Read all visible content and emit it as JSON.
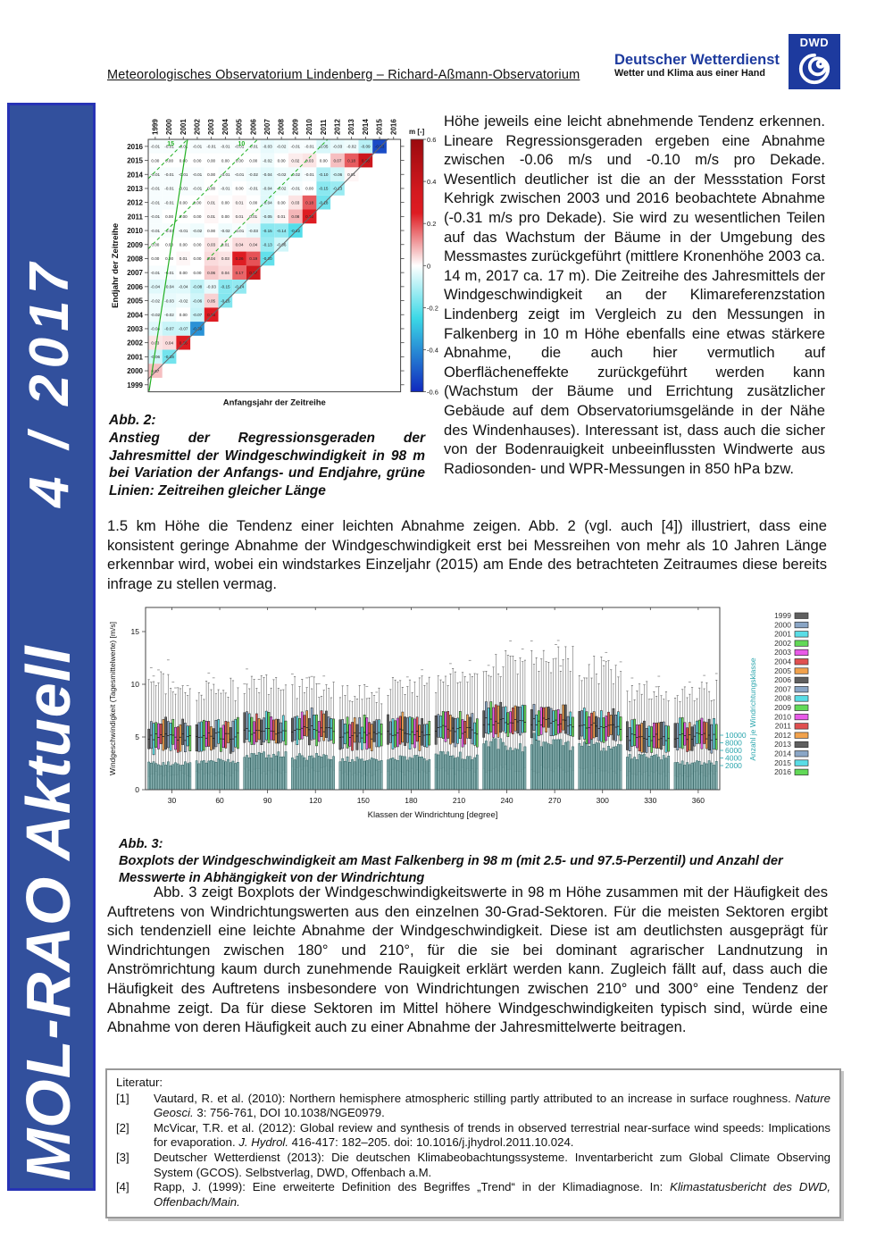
{
  "header": {
    "title": "Meteorologisches Observatorium Lindenberg – Richard-Aßmann-Observatorium",
    "brand_name": "Deutscher Wetterdienst",
    "brand_tagline": "Wetter und Klima aus einer Hand",
    "brand_logo_text": "DWD",
    "brand_color": "#1d3a9e"
  },
  "sidebar": {
    "issue": "4 / 2017",
    "title": "MOL-RAO Aktuell",
    "bg_color": "#32509d",
    "border_color": "#2733b5"
  },
  "body": {
    "col_right": "Höhe jeweils eine leicht abnehmende Tendenz erkennen. Lineare Regressionsgeraden ergeben eine Abnahme zwischen -0.06 m/s und -0.10 m/s pro Dekade. Wesentlich deutlicher ist die an der Messstation Forst Kehrigk zwischen 2003 und 2016 beobachtete Abnahme (-0.31 m/s pro Dekade). Sie wird zu wesentlichen Teilen auf das Wachstum der Bäume in der Umgebung des Messmastes zurückgeführt (mittlere Kronenhöhe 2003 ca. 14 m, 2017 ca. 17 m). Die Zeitreihe des Jahresmittels der Windgeschwindigkeit an der Klimareferenzstation Lindenberg zeigt im Vergleich zu den Messungen in Falkenberg in 10 m Höhe ebenfalls eine etwas stärkere Abnahme, die auch hier vermutlich auf Oberflächeneffekte zurückgeführt werden kann (Wachstum der Bäume und Errichtung zusätzlicher Gebäude auf dem Observatoriumsgelände in der Nähe des Windenhauses). Interessant ist, dass auch die sicher von der Bodenrauigkeit unbeeinflussten Windwerte aus Radiosonden- und WPR-Messungen in 850 hPa bzw.",
    "para_full": "1.5 km Höhe die Tendenz einer leichten Abnahme zeigen. Abb. 2 (vgl. auch [4]) illustriert, dass eine konsistent geringe Abnahme der Windgeschwindigkeit erst bei Messreihen von mehr als 10 Jahren Länge erkennbar wird, wobei ein windstarkes Einzeljahr (2015) am Ende des betrachteten Zeitraumes diese bereits infrage zu stellen vermag.",
    "para_3": "Abb. 3 zeigt Boxplots der Windgeschwindigkeitswerte in 98 m Höhe zusammen mit der Häufigkeit des Auftretens von Windrichtungswerten aus den einzelnen 30-Grad-Sektoren. Für die meisten Sektoren ergibt sich tendenziell eine leichte Abnahme der Windgeschwindigkeit. Diese ist am deutlichsten ausgeprägt für Windrichtungen zwischen 180° und 210°, für die sie bei dominant agrarischer Landnutzung in Anströmrichtung kaum durch zunehmende Rauigkeit erklärt werden kann. Zugleich fällt auf, dass auch die Häufigkeit des Auftretens insbesondere von Windrichtungen zwischen 210° und 300° eine Tendenz der Abnahme zeigt. Da für diese Sektoren im Mittel höhere Windgeschwindigkeiten typisch sind, würde eine Abnahme von deren Häufigkeit auch zu einer Abnahme der Jahresmittelwerte beitragen."
  },
  "fig2": {
    "caption_label": "Abb. 2:",
    "caption": "Anstieg der Regressionsgeraden der Jahresmittel der Windgeschwindigkeit in 98 m bei Variation der Anfangs- und Endjahre, grüne Linien: Zeitreihen gleicher Länge"
  },
  "fig3": {
    "caption_label": "Abb. 3:",
    "caption": "Boxplots der Windgeschwindigkeit am Mast Falkenberg in 98 m (mit 2.5- und 97.5-Perzentil) und Anzahl der Messwerte in Abhängigkeit von der Windrichtung"
  },
  "literature": {
    "title": "Literatur:",
    "refs": [
      {
        "num": "[1]",
        "parts": [
          {
            "t": "Vautard, R. et al. (2010): Northern hemisphere atmospheric stilling partly attributed to an increase in surface roughness. "
          },
          {
            "t": "Nature Geosci.",
            "i": true
          },
          {
            "t": " 3: 756-761, DOI 10.1038/NGE0979."
          }
        ]
      },
      {
        "num": "[2]",
        "parts": [
          {
            "t": "McVicar, T.R. et al. (2012): Global review and synthesis of trends in observed terrestrial near-surface wind speeds: Implications for evaporation. "
          },
          {
            "t": "J. Hydrol.",
            "i": true
          },
          {
            "t": " 416-417: 182–205. doi: 10.1016/j.jhydrol.2011.10.024."
          }
        ]
      },
      {
        "num": "[3]",
        "parts": [
          {
            "t": "Deutscher Wetterdienst (2013): Die deutschen Klimabeobachtungssysteme. Inventarbericht zum Global Climate Observing System (GCOS). Selbstverlag, DWD, Offenbach a.M."
          }
        ]
      },
      {
        "num": "[4]",
        "parts": [
          {
            "t": "Rapp, J. (1999): Eine erweiterte Definition des Begriffes „Trend“ in der Klimadiagnose. In: "
          },
          {
            "t": "Klimastatusbericht des DWD, Offenbach/Main.",
            "i": true
          }
        ]
      }
    ]
  },
  "chart_data": [
    {
      "type": "heatmap",
      "xlabel": "Anfangsjahr der Zeitreihe",
      "ylabel": "Endjahr der Zeitreihe",
      "colorbar_label": "m [-]",
      "colorbar_ticks": [
        0.6,
        0.4,
        0.2,
        0,
        -0.2,
        -0.4,
        -0.6
      ],
      "value_range": [
        -0.6,
        0.6
      ],
      "start_years": [
        1999,
        2000,
        2001,
        2002,
        2003,
        2004,
        2005,
        2006,
        2007,
        2008,
        2009,
        2010,
        2011,
        2012,
        2013,
        2014,
        2015,
        2016
      ],
      "rows": [
        {
          "end": 2016,
          "values": [
            -0.01,
            -0.01,
            -0.01,
            -0.01,
            -0.01,
            -0.01,
            -0.01,
            -0.01,
            -0.03,
            -0.02,
            -0.01,
            -0.01,
            -0.05,
            -0.03,
            -0.02,
            -0.09,
            -0.53
          ]
        },
        {
          "end": 2015,
          "values": [
            0.0,
            0.0,
            0.0,
            0.0,
            0.0,
            0.0,
            0.0,
            0.0,
            -0.02,
            0.0,
            0.02,
            0.03,
            0.0,
            0.07,
            0.18,
            0.38
          ]
        },
        {
          "end": 2014,
          "values": [
            -0.01,
            -0.01,
            -0.01,
            -0.01,
            0.0,
            -0.01,
            -0.01,
            -0.02,
            -0.04,
            -0.02,
            -0.02,
            -0.01,
            -0.1,
            -0.06,
            0.01
          ]
        },
        {
          "end": 2013,
          "values": [
            -0.01,
            -0.01,
            -0.01,
            -0.01,
            0.0,
            -0.01,
            0.0,
            -0.01,
            -0.04,
            -0.02,
            -0.01,
            0.0,
            -0.15,
            -0.13
          ]
        },
        {
          "end": 2012,
          "values": [
            -0.01,
            -0.01,
            0.0,
            0.0,
            0.01,
            0.0,
            0.01,
            0.0,
            -0.04,
            0.0,
            0.03,
            0.18,
            -0.18
          ]
        },
        {
          "end": 2011,
          "values": [
            -0.01,
            0.0,
            0.0,
            0.0,
            0.01,
            0.0,
            0.01,
            0.01,
            -0.05,
            0.01,
            0.08,
            0.3
          ]
        },
        {
          "end": 2010,
          "values": [
            -0.01,
            -0.01,
            -0.01,
            -0.02,
            0.0,
            -0.02,
            -0.01,
            -0.03,
            -0.15,
            -0.14,
            -0.22
          ]
        },
        {
          "end": 2009,
          "values": [
            0.0,
            0.0,
            0.0,
            0.0,
            0.03,
            0.01,
            0.04,
            0.04,
            -0.13,
            -0.06
          ]
        },
        {
          "end": 2008,
          "values": [
            0.0,
            0.0,
            0.01,
            0.0,
            0.04,
            0.03,
            0.26,
            0.19,
            -0.2
          ]
        },
        {
          "end": 2007,
          "values": [
            -0.01,
            -0.01,
            0.0,
            0.0,
            0.06,
            0.04,
            0.17,
            0.37
          ]
        },
        {
          "end": 2006,
          "values": [
            -0.04,
            -0.04,
            -0.04,
            -0.08,
            -0.03,
            -0.15,
            -0.14
          ]
        },
        {
          "end": 2005,
          "values": [
            -0.02,
            -0.03,
            -0.02,
            -0.06,
            0.05,
            -0.16
          ]
        },
        {
          "end": 2004,
          "values": [
            -0.02,
            -0.02,
            0.0,
            -0.07,
            0.26
          ]
        },
        {
          "end": 2003,
          "values": [
            -0.04,
            -0.07,
            -0.07,
            -0.39
          ]
        },
        {
          "end": 2002,
          "values": [
            0.03,
            0.04,
            0.26
          ]
        },
        {
          "end": 2001,
          "values": [
            -0.06,
            -0.18
          ]
        },
        {
          "end": 2000,
          "values": [
            0.07
          ]
        },
        {
          "end": 1999,
          "values": []
        }
      ],
      "equal_length_lines": [
        {
          "length": 15,
          "style": "dashed",
          "label": "15"
        },
        {
          "length": 10,
          "style": "dashed",
          "label": "10"
        },
        {
          "length": 5,
          "style": "dashed",
          "label": ""
        }
      ],
      "green_color": "#22b022"
    },
    {
      "type": "boxplot",
      "xlabel": "Klassen der Windrichtung [degree]",
      "ylabel": "Windgeschwindigkeit (Tagesmittelwerte) [m/s]",
      "ylabel2": "Anzahl je Windrichtungsklasse",
      "ylim": [
        0,
        17.3
      ],
      "yticks": [
        0,
        5,
        10,
        15
      ],
      "count_ticks": [
        10000,
        8000,
        6000,
        4000,
        2000
      ],
      "years": [
        1999,
        2000,
        2001,
        2002,
        2003,
        2004,
        2005,
        2006,
        2007,
        2008,
        2009,
        2010,
        2011,
        2012,
        2013,
        2014,
        2015,
        2016
      ],
      "year_palette": [
        "#5f5f5f",
        "#8aa6c6",
        "#59dde6",
        "#62d957",
        "#e85ae8",
        "#e05050",
        "#f2a24c"
      ],
      "count_fill": "#7ba9a9",
      "count_stroke": "#2d5f5f",
      "count_axis_color": "#2aa5ad",
      "seed": 20174,
      "sectors": [
        {
          "deg": 30,
          "median": 5.1,
          "lo": 1.5,
          "hi": 10.8,
          "count": 2500,
          "ts": 0.008,
          "tc": 0.0
        },
        {
          "deg": 60,
          "median": 5.2,
          "lo": 1.6,
          "hi": 10.2,
          "count": 3200,
          "ts": 0.008,
          "tc": 0.0
        },
        {
          "deg": 90,
          "median": 5.6,
          "lo": 1.8,
          "hi": 10.8,
          "count": 4800,
          "ts": 0.008,
          "tc": 0.0
        },
        {
          "deg": 120,
          "median": 5.8,
          "lo": 1.9,
          "hi": 10.5,
          "count": 4300,
          "ts": 0.008,
          "tc": 0.0
        },
        {
          "deg": 150,
          "median": 5.2,
          "lo": 1.6,
          "hi": 9.6,
          "count": 3600,
          "ts": 0.008,
          "tc": 0.0
        },
        {
          "deg": 180,
          "median": 5.5,
          "lo": 1.7,
          "hi": 10.6,
          "count": 3900,
          "ts": 0.018,
          "tc": 0.0
        },
        {
          "deg": 210,
          "median": 5.8,
          "lo": 1.8,
          "hi": 11.2,
          "count": 5200,
          "ts": 0.018,
          "tc": 0.012
        },
        {
          "deg": 240,
          "median": 6.5,
          "lo": 2.0,
          "hi": 13.0,
          "count": 8300,
          "ts": 0.012,
          "tc": 0.012
        },
        {
          "deg": 270,
          "median": 6.5,
          "lo": 2.0,
          "hi": 13.2,
          "count": 8800,
          "ts": 0.012,
          "tc": 0.012
        },
        {
          "deg": 300,
          "median": 6.1,
          "lo": 1.9,
          "hi": 12.2,
          "count": 7800,
          "ts": 0.012,
          "tc": 0.012
        },
        {
          "deg": 330,
          "median": 5.0,
          "lo": 1.5,
          "hi": 10.2,
          "count": 4200,
          "ts": 0.006,
          "tc": 0.0
        },
        {
          "deg": 360,
          "median": 5.1,
          "lo": 1.5,
          "hi": 10.0,
          "count": 2700,
          "ts": 0.006,
          "tc": 0.0
        }
      ]
    }
  ]
}
